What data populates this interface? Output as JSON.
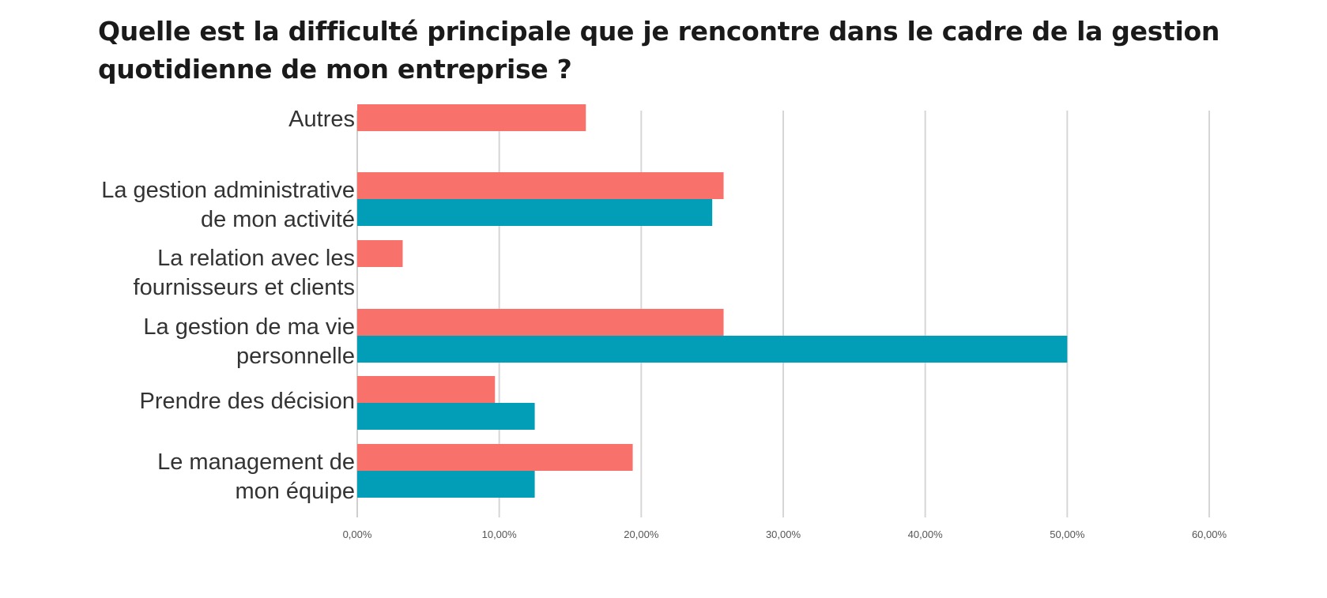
{
  "title_lines": [
    "Quelle est la difficulté principale que je rencontre dans le cadre de la gestion",
    "quotidienne de mon entreprise ?"
  ],
  "chart_data": {
    "type": "bar",
    "orientation": "horizontal",
    "categories": [
      [
        "Autres"
      ],
      [
        "La gestion administrative",
        "de  mon activité"
      ],
      [
        "La relation avec les",
        "fournisseurs et clients"
      ],
      [
        "La gestion de ma vie",
        "personnelle"
      ],
      [
        "Prendre des décision"
      ],
      [
        "Le management de",
        "mon équipe"
      ]
    ],
    "series": [
      {
        "color": "#f8716a",
        "values": [
          16.1,
          25.8,
          3.2,
          25.8,
          9.7,
          19.4
        ]
      },
      {
        "color": "#029eb8",
        "values": [
          null,
          25.0,
          null,
          50.0,
          12.5,
          12.5
        ]
      }
    ],
    "xlim": [
      0,
      60
    ],
    "xticks": [
      0,
      10,
      20,
      30,
      40,
      50,
      60
    ],
    "xtick_labels": [
      "0,00%",
      "10,00%",
      "20,00%",
      "30,00%",
      "40,00%",
      "50,00%",
      "60,00%"
    ],
    "grid": true,
    "legend": "none"
  }
}
